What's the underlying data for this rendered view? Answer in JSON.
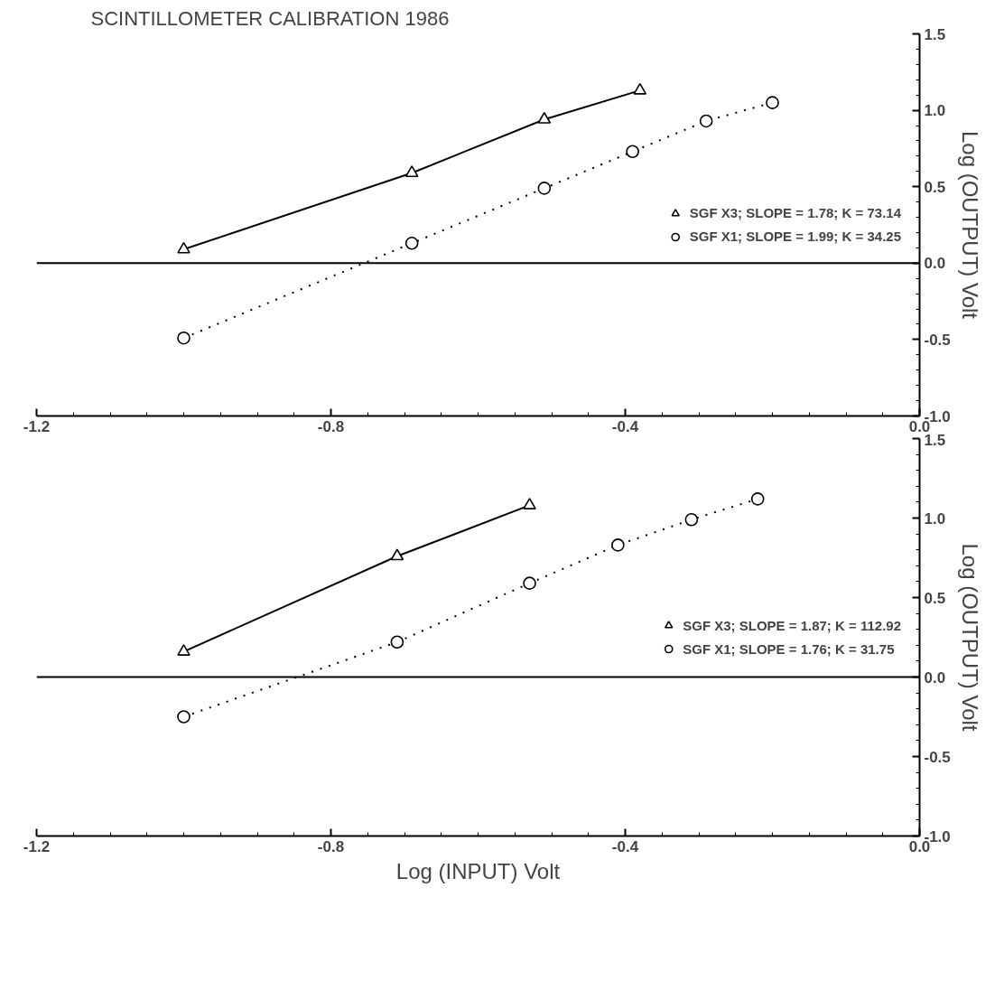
{
  "chart_data": [
    {
      "type": "line",
      "title": "SCINTILLOMETER CALIBRATION 1986",
      "ylabel": "Log (OUTPUT) Volt",
      "xlim": [
        -1.2,
        0.0
      ],
      "xticks": [
        -1.2,
        -0.8,
        -0.4,
        {
          "value": 0,
          "label": "0.0"
        }
      ],
      "ylim": [
        -1.0,
        1.5
      ],
      "yticks": [
        {
          "value": -1,
          "label": "-1.0"
        },
        -0.5,
        {
          "value": 0,
          "label": "0.0"
        },
        0.5,
        {
          "value": 1,
          "label": "1.0"
        },
        1.5
      ],
      "grid": false,
      "legend": "right",
      "ref_lines": [
        {
          "axis": "y",
          "value": 0.0,
          "color": "#000000"
        }
      ],
      "series": [
        {
          "name": "SGF X3; SLOPE = 1.78; K = 73.14",
          "color": "#000000",
          "marker": "triangle",
          "line_style": "solid",
          "x": [
            -1.0,
            -0.69,
            -0.51,
            -0.38
          ],
          "values": [
            0.09,
            0.59,
            0.94,
            1.13
          ]
        },
        {
          "name": "SGF X1; SLOPE = 1.99; K = 34.25",
          "color": "#000000",
          "marker": "circle",
          "line_style": "dotted",
          "x": [
            -1.0,
            -0.69,
            -0.51,
            -0.39,
            -0.29,
            -0.2
          ],
          "values": [
            -0.49,
            0.13,
            0.49,
            0.73,
            0.93,
            1.05
          ]
        }
      ]
    },
    {
      "type": "line",
      "xlabel": "Log (INPUT) Volt",
      "ylabel": "Log (OUTPUT) Volt",
      "xlim": [
        -1.2,
        0.0
      ],
      "xticks": [
        -1.2,
        -0.8,
        -0.4,
        {
          "value": 0,
          "label": "0.0"
        }
      ],
      "ylim": [
        -1.0,
        1.5
      ],
      "yticks": [
        {
          "value": -1,
          "label": "-1.0"
        },
        -0.5,
        {
          "value": 0,
          "label": "0.0"
        },
        0.5,
        {
          "value": 1,
          "label": "1.0"
        },
        1.5
      ],
      "grid": false,
      "legend": "right",
      "ref_lines": [
        {
          "axis": "y",
          "value": 0.0,
          "color": "#000000"
        }
      ],
      "series": [
        {
          "name": "SGF X3; SLOPE = 1.87; K = 112.92",
          "color": "#000000",
          "marker": "triangle",
          "line_style": "solid",
          "x": [
            -1.0,
            -0.71,
            -0.53
          ],
          "values": [
            0.16,
            0.76,
            1.08
          ]
        },
        {
          "name": "SGF X1; SLOPE = 1.76; K = 31.75",
          "color": "#000000",
          "marker": "circle",
          "line_style": "dotted",
          "x": [
            -1.0,
            -0.71,
            -0.53,
            -0.41,
            -0.31,
            -0.22
          ],
          "values": [
            -0.25,
            0.22,
            0.59,
            0.83,
            0.99,
            1.12
          ]
        }
      ]
    }
  ]
}
